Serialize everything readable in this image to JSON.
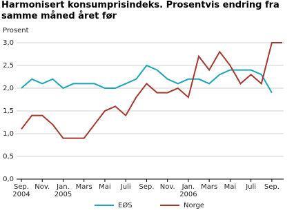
{
  "chart_data": {
    "type": "line",
    "title": "Harmonisert konsumprisindeks. Prosentvis endring fra samme måned året før",
    "y_label": "Prosent",
    "categories": [
      "Sep.\n2004",
      null,
      "Nov.",
      null,
      "Jan.\n2005",
      null,
      "Mars",
      null,
      "Mai",
      null,
      "Juli",
      null,
      "Sep.",
      null,
      "Nov.",
      null,
      "Jan.\n2006",
      null,
      "Mars",
      null,
      "Mai",
      null,
      "Juli",
      null,
      "Sep.",
      null
    ],
    "series": [
      {
        "name": "EØS",
        "color": "#1ba3b6",
        "values": [
          2.0,
          2.2,
          2.1,
          2.2,
          2.0,
          2.1,
          2.1,
          2.1,
          2.0,
          2.0,
          2.1,
          2.2,
          2.5,
          2.4,
          2.2,
          2.1,
          2.2,
          2.2,
          2.1,
          2.3,
          2.4,
          2.4,
          2.4,
          2.3,
          1.9,
          null
        ]
      },
      {
        "name": "Norge",
        "color": "#a3392f",
        "values": [
          1.1,
          1.4,
          1.4,
          1.2,
          0.9,
          0.9,
          0.9,
          1.2,
          1.5,
          1.6,
          1.4,
          1.8,
          2.1,
          1.9,
          1.9,
          2.0,
          1.8,
          2.7,
          2.4,
          2.8,
          2.5,
          2.1,
          2.3,
          2.1,
          3.0,
          3.0
        ]
      }
    ],
    "ylim": [
      0,
      3
    ],
    "yticks": [
      {
        "value": 0,
        "label": "0,0"
      },
      {
        "value": 0.5,
        "label": "0,5"
      },
      {
        "value": 1,
        "label": "1,0"
      },
      {
        "value": 1.5,
        "label": "1,5"
      },
      {
        "value": 2,
        "label": "2,0"
      },
      {
        "value": 2.5,
        "label": "2,5"
      },
      {
        "value": 3,
        "label": "3,0"
      }
    ],
    "grid": true,
    "legend": "bottom"
  }
}
